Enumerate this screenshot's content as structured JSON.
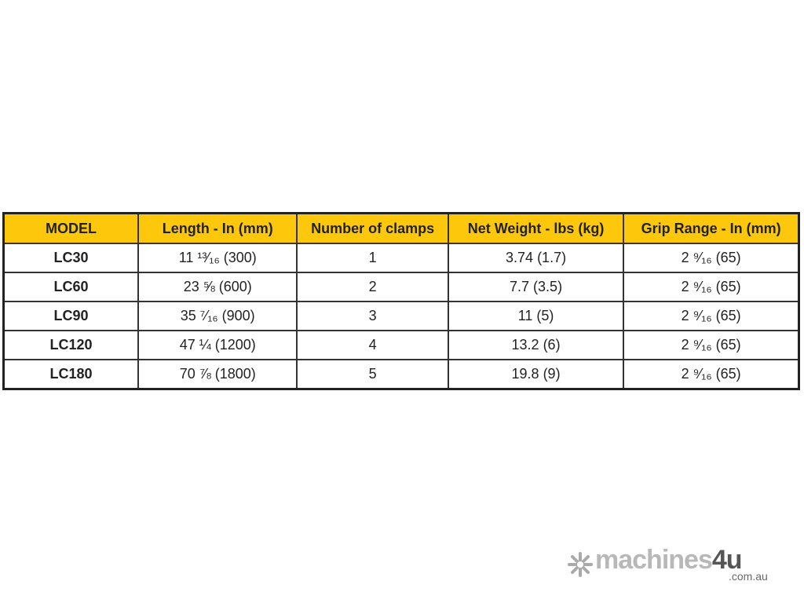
{
  "table": {
    "headers": [
      "MODEL",
      "Length - In (mm)",
      "Number of clamps",
      "Net Weight - lbs (kg)",
      "Grip Range - In (mm)"
    ],
    "rows": [
      [
        "LC30",
        "11 ¹³⁄₁₆ (300)",
        "1",
        "3.74 (1.7)",
        "2 ⁹⁄₁₆ (65)"
      ],
      [
        "LC60",
        "23 ⅝ (600)",
        "2",
        "7.7 (3.5)",
        "2 ⁹⁄₁₆ (65)"
      ],
      [
        "LC90",
        "35 ⁷⁄₁₆ (900)",
        "3",
        "11 (5)",
        "2 ⁹⁄₁₆ (65)"
      ],
      [
        "LC120",
        "47 ¼ (1200)",
        "4",
        "13.2 (6)",
        "2 ⁹⁄₁₆ (65)"
      ],
      [
        "LC180",
        "70 ⅞ (1800)",
        "5",
        "19.8 (9)",
        "2 ⁹⁄₁₆ (65)"
      ]
    ]
  },
  "watermark": {
    "brand_main": "machines",
    "brand_accent": "4u",
    "domain": ".com.au",
    "icon": "snowflake-arrows-icon"
  },
  "colors": {
    "header_bg": "#fdc70c",
    "border": "#222222"
  }
}
